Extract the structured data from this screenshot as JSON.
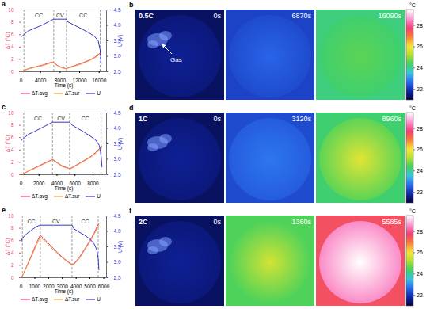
{
  "chart_data": [
    {
      "type": "line",
      "panel": "a",
      "x_label": "Time (s)",
      "y_label": "ΔT (°C)",
      "y2_label": "U (V)",
      "xlim": [
        0,
        17500
      ],
      "xticks": [
        0,
        4000,
        8000,
        12000,
        16000
      ],
      "ylim": [
        0,
        10
      ],
      "yticks": [
        0,
        2,
        4,
        6,
        8,
        10
      ],
      "y2lim": [
        2.5,
        4.5
      ],
      "y2ticks": [
        2.5,
        {
          "value": 3,
          "label": "3.0"
        },
        3.5,
        {
          "value": 4,
          "label": "4.0"
        },
        4.5
      ],
      "phases": [
        {
          "label": "CC",
          "from": 600,
          "to": 6700
        },
        {
          "label": "CV",
          "from": 6700,
          "to": 9300
        },
        {
          "label": "CC",
          "from": 9300,
          "to": 16200
        }
      ],
      "x": [
        0,
        600,
        1500,
        3000,
        4500,
        6000,
        6700,
        7500,
        8300,
        9300,
        9500,
        11000,
        12500,
        14000,
        15000,
        15800,
        16200,
        16400
      ],
      "series": [
        {
          "name": "ΔT.avg",
          "color": "#e8456a",
          "values": [
            0,
            0.2,
            0.5,
            0.8,
            1.1,
            1.5,
            1.5,
            1.0,
            0.7,
            0.5,
            0.6,
            1.0,
            1.4,
            1.9,
            2.3,
            2.8,
            3.0,
            3.1
          ]
        },
        {
          "name": "ΔT.sur",
          "color": "#f0a040",
          "values": [
            0,
            0.2,
            0.45,
            0.75,
            1.0,
            1.4,
            1.4,
            0.95,
            0.65,
            0.45,
            0.55,
            0.9,
            1.3,
            1.8,
            2.2,
            2.6,
            2.9,
            3.0
          ]
        },
        {
          "name": "U",
          "color": "#3535c8",
          "axis": "y2",
          "values": [
            3.62,
            3.7,
            3.82,
            3.92,
            4.02,
            4.15,
            4.2,
            4.2,
            4.2,
            4.2,
            4.12,
            4.0,
            3.88,
            3.75,
            3.65,
            3.5,
            3.2,
            2.75
          ]
        }
      ]
    },
    {
      "type": "image",
      "panel": "b",
      "rate": "0.5C",
      "annotation": "Gas",
      "frames": [
        {
          "time": "0s",
          "center": 21.7,
          "edge": 21.5,
          "background": 21.3
        },
        {
          "time": "6870s",
          "center": 22.6,
          "edge": 22.3,
          "background": 22.2
        },
        {
          "time": "16090s",
          "center": 24.6,
          "edge": 24.3,
          "background": 24.2
        }
      ],
      "colorbar": {
        "label": "°C",
        "range": [
          21,
          29.5
        ],
        "ticks": [
          22,
          24,
          26,
          28
        ]
      }
    },
    {
      "type": "line",
      "panel": "c",
      "x_label": "Time (s)",
      "y_label": "ΔT (°C)",
      "y2_label": "U (V)",
      "xlim": [
        0,
        9500
      ],
      "xticks": [
        0,
        2000,
        4000,
        6000,
        8000
      ],
      "ylim": [
        0,
        10
      ],
      "yticks": [
        0,
        2,
        4,
        6,
        8,
        10
      ],
      "y2lim": [
        2.5,
        4.5
      ],
      "y2ticks": [
        2.5,
        {
          "value": 3,
          "label": "3.0"
        },
        3.5,
        {
          "value": 4,
          "label": "4.0"
        },
        4.5
      ],
      "phases": [
        {
          "label": "CC",
          "from": 300,
          "to": 3500
        },
        {
          "label": "CV",
          "from": 3500,
          "to": 5400
        },
        {
          "label": "CC",
          "from": 5400,
          "to": 8900
        }
      ],
      "x": [
        0,
        300,
        800,
        1500,
        2500,
        3500,
        4000,
        4600,
        5400,
        5600,
        6300,
        7000,
        7700,
        8300,
        8700,
        8900,
        9000
      ],
      "series": [
        {
          "name": "ΔT.avg",
          "color": "#e8456a",
          "values": [
            0,
            0.2,
            0.6,
            1.1,
            1.8,
            2.5,
            2.0,
            1.4,
            1.0,
            1.1,
            1.7,
            2.3,
            2.9,
            3.6,
            4.2,
            4.5,
            4.6
          ]
        },
        {
          "name": "ΔT.sur",
          "color": "#f0a040",
          "values": [
            0,
            0.2,
            0.55,
            1.0,
            1.7,
            2.4,
            1.9,
            1.3,
            0.95,
            1.0,
            1.6,
            2.2,
            2.8,
            3.4,
            4.0,
            4.3,
            4.4
          ]
        },
        {
          "name": "U",
          "color": "#3535c8",
          "axis": "y2",
          "values": [
            3.6,
            3.68,
            3.8,
            3.9,
            4.05,
            4.2,
            4.2,
            4.2,
            4.2,
            4.12,
            4.0,
            3.88,
            3.75,
            3.62,
            3.45,
            3.1,
            2.75
          ]
        }
      ]
    },
    {
      "type": "image",
      "panel": "d",
      "rate": "1C",
      "frames": [
        {
          "time": "0s",
          "center": 21.7,
          "edge": 21.5,
          "background": 21.3
        },
        {
          "time": "3120s",
          "center": 22.8,
          "edge": 22.5,
          "background": 22.3
        },
        {
          "time": "8960s",
          "center": 25.8,
          "edge": 24.6,
          "background": 24.3
        }
      ],
      "colorbar": {
        "label": "°C",
        "range": [
          21,
          29.5
        ],
        "ticks": [
          22,
          24,
          26,
          28
        ]
      }
    },
    {
      "type": "line",
      "panel": "e",
      "x_label": "Time (s)",
      "y_label": "ΔT (°C)",
      "y2_label": "U (V)",
      "xlim": [
        0,
        6200
      ],
      "xticks": [
        0,
        1000,
        2000,
        3000,
        4000,
        5000,
        6000
      ],
      "ylim": [
        0,
        10
      ],
      "yticks": [
        0,
        2,
        4,
        6,
        8,
        10
      ],
      "y2lim": [
        2.5,
        4.5
      ],
      "y2ticks": [
        2.5,
        {
          "value": 3,
          "label": "3.0"
        },
        3.5,
        {
          "value": 4,
          "label": "4.0"
        },
        4.5
      ],
      "phases": [
        {
          "label": "CC",
          "from": 100,
          "to": 1400
        },
        {
          "label": "CV",
          "from": 1400,
          "to": 3700
        },
        {
          "label": "CC",
          "from": 3700,
          "to": 5600
        }
      ],
      "x": [
        0,
        100,
        400,
        800,
        1100,
        1400,
        1800,
        2400,
        3000,
        3700,
        3850,
        4200,
        4600,
        5000,
        5300,
        5500,
        5600,
        5650
      ],
      "series": [
        {
          "name": "ΔT.avg",
          "color": "#e8456a",
          "values": [
            0,
            0.3,
            1.8,
            3.8,
            5.5,
            6.9,
            6.0,
            4.6,
            3.3,
            2.1,
            2.3,
            3.2,
            4.6,
            6.0,
            7.2,
            8.2,
            8.6,
            8.7
          ]
        },
        {
          "name": "ΔT.sur",
          "color": "#f0a040",
          "values": [
            0,
            0.3,
            1.7,
            3.6,
            5.2,
            6.6,
            5.8,
            4.4,
            3.2,
            2.0,
            2.2,
            3.0,
            4.4,
            5.8,
            7.0,
            7.9,
            8.3,
            8.4
          ]
        },
        {
          "name": "U",
          "color": "#3535c8",
          "axis": "y2",
          "values": [
            3.65,
            3.78,
            3.92,
            4.05,
            4.15,
            4.2,
            4.2,
            4.2,
            4.2,
            4.2,
            4.08,
            3.98,
            3.88,
            3.75,
            3.6,
            3.4,
            3.1,
            2.75
          ]
        }
      ]
    },
    {
      "type": "image",
      "panel": "f",
      "rate": "2C",
      "frames": [
        {
          "time": "0s",
          "center": 21.7,
          "edge": 21.5,
          "background": 21.3
        },
        {
          "time": "1360s",
          "center": 25.6,
          "edge": 24.5,
          "background": 24.5
        },
        {
          "time": "5585s",
          "center": 29.5,
          "edge": 28.5,
          "background": 27.5
        }
      ],
      "colorbar": {
        "label": "°C",
        "range": [
          21,
          29.5
        ],
        "ticks": [
          22,
          24,
          26,
          28
        ]
      }
    }
  ]
}
